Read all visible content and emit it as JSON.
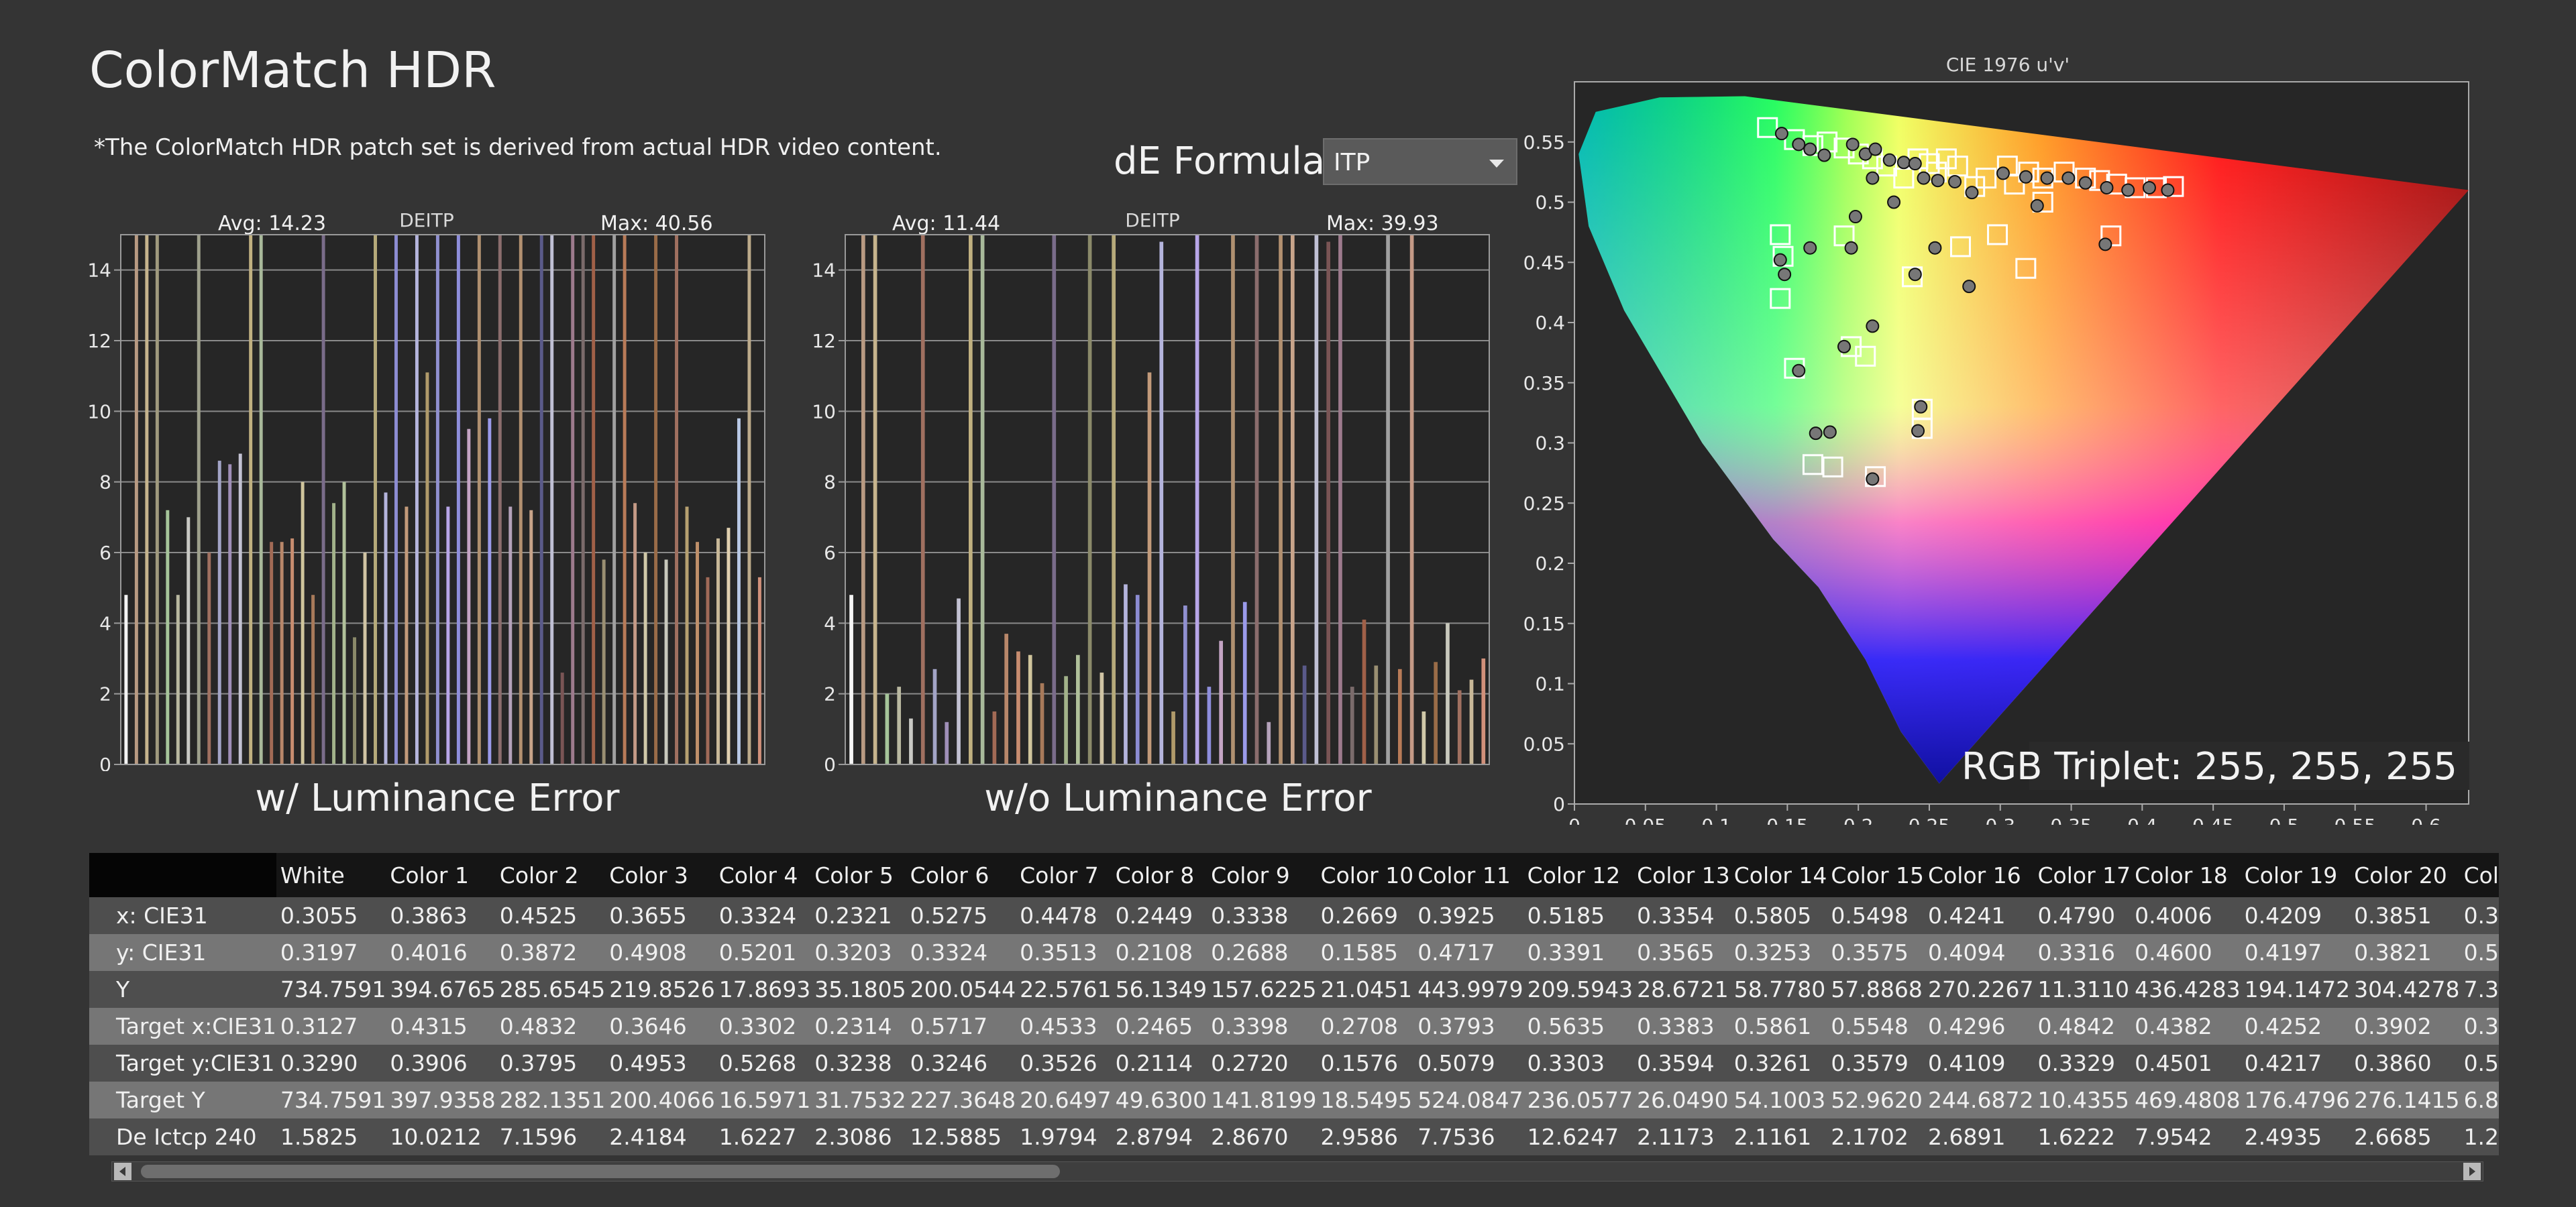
{
  "header": {
    "title": "ColorMatch HDR",
    "subtitle": "*The ColorMatch HDR patch set is derived from actual HDR video content.",
    "de_formula_label": "dE Formula:",
    "de_formula_value": "ITP"
  },
  "colors": {
    "background": "#343434",
    "plot_background": "#262626",
    "grid": "#8a8a8a",
    "row_dark": "#4e4e4e",
    "row_light": "#767676"
  },
  "chart_data": [
    {
      "type": "bar",
      "title": "DEITP",
      "caption": "w/ Luminance Error",
      "avg_label": "Avg: 14.23",
      "max_label": "Max: 40.56",
      "ylim": [
        0,
        15
      ],
      "y_ticks": [
        0,
        2,
        4,
        6,
        8,
        10,
        12,
        14
      ],
      "grid": true,
      "values": [
        4.8,
        15,
        15,
        15,
        7.2,
        4.8,
        7.0,
        15,
        6.0,
        8.6,
        8.5,
        8.8,
        15,
        15,
        6.3,
        6.3,
        6.4,
        8.0,
        4.8,
        15,
        7.4,
        8.0,
        3.6,
        6.0,
        15,
        7.7,
        15,
        7.3,
        15,
        11.1,
        15,
        7.3,
        15,
        9.5,
        15,
        9.8,
        15,
        7.3,
        15,
        7.2,
        15,
        15,
        2.6,
        15,
        15,
        15,
        5.8,
        15,
        15,
        7.4,
        6.0,
        15,
        5.8,
        15,
        7.3,
        6.3,
        5.3,
        6.4,
        6.7,
        9.8,
        15,
        5.3
      ],
      "bar_colors": [
        "#f4f4f4",
        "#b89a82",
        "#c6b48d",
        "#a09a7e",
        "#a6c59a",
        "#b9b8a0",
        "#c9c9c4",
        "#9ea08c",
        "#a07060",
        "#a2a4c6",
        "#9f8fb8",
        "#c3c2d2",
        "#c0b080",
        "#a8b99a",
        "#a26a55",
        "#b8876a",
        "#c88d70",
        "#d0c59c",
        "#a87a5a",
        "#7a6c8a",
        "#a2b28a",
        "#b0c09a",
        "#8b8a6a",
        "#d0c4a4",
        "#b6aa7a",
        "#b4b4dc",
        "#8c8cd2",
        "#c29a7a",
        "#b4b4dc",
        "#b09a6a",
        "#9090d0",
        "#b8a6e8",
        "#8e8edc",
        "#c4a4c4",
        "#b09070",
        "#9a9aea",
        "#8b6d6d",
        "#b4a2ba",
        "#b29070",
        "#c8a48a",
        "#5a5a8a",
        "#c0c0d4",
        "#7a5555",
        "#9d7a8d",
        "#7b6b6b",
        "#a06048",
        "#9a8f72",
        "#a0a0a0",
        "#b87b58",
        "#c49a86",
        "#d0c8a8",
        "#9a6c48",
        "#c8c8bc",
        "#a07060",
        "#b6a070",
        "#c0906a",
        "#a06a58",
        "#c8b898",
        "#e0d0b0",
        "#b8c8e4",
        "#bcaa8a",
        "#d0907a"
      ]
    },
    {
      "type": "bar",
      "title": "DEITP",
      "caption": "w/o Luminance Error",
      "avg_label": "Avg: 11.44",
      "max_label": "Max: 39.93",
      "ylim": [
        0,
        15
      ],
      "y_ticks": [
        0,
        2,
        4,
        6,
        8,
        10,
        12,
        14
      ],
      "grid": true,
      "values": [
        4.8,
        15,
        15,
        2.0,
        2.2,
        1.3,
        15,
        2.7,
        1.2,
        4.7,
        15,
        15,
        1.5,
        3.7,
        3.2,
        3.1,
        2.3,
        15,
        2.5,
        3.1,
        15,
        2.6,
        15,
        5.1,
        4.8,
        11.1,
        14.8,
        1.5,
        4.5,
        15,
        2.2,
        3.5,
        15,
        4.6,
        15,
        1.2,
        15,
        15,
        2.8,
        15,
        14.8,
        15,
        2.2,
        4.1,
        2.8,
        15,
        2.7,
        15,
        1.5,
        2.9,
        4.0,
        2.1,
        2.4,
        3.0
      ],
      "bar_colors": [
        "#f4f4f4",
        "#b89a82",
        "#c6b48d",
        "#a6c59a",
        "#b9b8a0",
        "#c9c9c4",
        "#a07060",
        "#a2a4c6",
        "#9f8fb8",
        "#c3c2d2",
        "#c0b080",
        "#a8b99a",
        "#a26a55",
        "#b8876a",
        "#c88d70",
        "#d0c59c",
        "#a87a5a",
        "#7a6c8a",
        "#a2b28a",
        "#b0c09a",
        "#8b8a6a",
        "#d0c4a4",
        "#b6aa7a",
        "#b4b4dc",
        "#8c8cd2",
        "#c29a7a",
        "#b4b4dc",
        "#b09a6a",
        "#9090d0",
        "#b8a6e8",
        "#8e8edc",
        "#c4a4c4",
        "#b09070",
        "#9a9aea",
        "#8b6d6d",
        "#b4a2ba",
        "#b29070",
        "#c8a48a",
        "#5a5a8a",
        "#c0c0d4",
        "#7a5555",
        "#9d7a8d",
        "#7b6b6b",
        "#a06048",
        "#9a8f72",
        "#a0a0a0",
        "#b87b58",
        "#c49a86",
        "#d0c8a8",
        "#9a6c48",
        "#c8c8bc",
        "#a07060",
        "#c8b898",
        "#d0907a"
      ]
    },
    {
      "type": "scatter",
      "title": "CIE 1976 u'v'",
      "rgb_triplet_label": "RGB Triplet: 255, 255, 255",
      "xlim": [
        0,
        0.63
      ],
      "ylim": [
        0,
        0.6
      ],
      "x_ticks": [
        "0",
        "0.05",
        "0.1",
        "0.15",
        "0.2",
        "0.25",
        "0.3",
        "0.35",
        "0.4",
        "0.45",
        "0.5",
        "0.55",
        "0.6"
      ],
      "y_ticks": [
        "0",
        "0.05",
        "0.1",
        "0.15",
        "0.2",
        "0.25",
        "0.3",
        "0.35",
        "0.4",
        "0.45",
        "0.5",
        "0.55"
      ],
      "target_points": [
        [
          0.136,
          0.562
        ],
        [
          0.155,
          0.552
        ],
        [
          0.168,
          0.547
        ],
        [
          0.178,
          0.55
        ],
        [
          0.19,
          0.545
        ],
        [
          0.2,
          0.54
        ],
        [
          0.21,
          0.536
        ],
        [
          0.22,
          0.53
        ],
        [
          0.232,
          0.52
        ],
        [
          0.242,
          0.536
        ],
        [
          0.25,
          0.532
        ],
        [
          0.255,
          0.525
        ],
        [
          0.262,
          0.536
        ],
        [
          0.27,
          0.53
        ],
        [
          0.282,
          0.513
        ],
        [
          0.29,
          0.52
        ],
        [
          0.305,
          0.53
        ],
        [
          0.31,
          0.515
        ],
        [
          0.32,
          0.525
        ],
        [
          0.33,
          0.52
        ],
        [
          0.345,
          0.525
        ],
        [
          0.36,
          0.52
        ],
        [
          0.37,
          0.518
        ],
        [
          0.382,
          0.515
        ],
        [
          0.395,
          0.512
        ],
        [
          0.41,
          0.512
        ],
        [
          0.422,
          0.513
        ],
        [
          0.33,
          0.5
        ],
        [
          0.298,
          0.473
        ],
        [
          0.272,
          0.463
        ],
        [
          0.238,
          0.438
        ],
        [
          0.19,
          0.472
        ],
        [
          0.145,
          0.473
        ],
        [
          0.147,
          0.455
        ],
        [
          0.145,
          0.42
        ],
        [
          0.155,
          0.362
        ],
        [
          0.195,
          0.38
        ],
        [
          0.205,
          0.372
        ],
        [
          0.245,
          0.328
        ],
        [
          0.245,
          0.312
        ],
        [
          0.168,
          0.282
        ],
        [
          0.182,
          0.28
        ],
        [
          0.212,
          0.272
        ],
        [
          0.318,
          0.445
        ],
        [
          0.378,
          0.472
        ]
      ],
      "measured_points": [
        [
          0.146,
          0.557
        ],
        [
          0.158,
          0.548
        ],
        [
          0.166,
          0.544
        ],
        [
          0.176,
          0.539
        ],
        [
          0.196,
          0.548
        ],
        [
          0.205,
          0.54
        ],
        [
          0.212,
          0.544
        ],
        [
          0.222,
          0.535
        ],
        [
          0.232,
          0.533
        ],
        [
          0.24,
          0.532
        ],
        [
          0.246,
          0.52
        ],
        [
          0.256,
          0.518
        ],
        [
          0.268,
          0.517
        ],
        [
          0.28,
          0.508
        ],
        [
          0.302,
          0.524
        ],
        [
          0.318,
          0.521
        ],
        [
          0.333,
          0.52
        ],
        [
          0.348,
          0.52
        ],
        [
          0.36,
          0.516
        ],
        [
          0.375,
          0.512
        ],
        [
          0.39,
          0.51
        ],
        [
          0.405,
          0.512
        ],
        [
          0.418,
          0.51
        ],
        [
          0.326,
          0.497
        ],
        [
          0.198,
          0.488
        ],
        [
          0.195,
          0.462
        ],
        [
          0.166,
          0.462
        ],
        [
          0.145,
          0.452
        ],
        [
          0.148,
          0.44
        ],
        [
          0.254,
          0.462
        ],
        [
          0.278,
          0.43
        ],
        [
          0.24,
          0.44
        ],
        [
          0.21,
          0.397
        ],
        [
          0.19,
          0.38
        ],
        [
          0.158,
          0.36
        ],
        [
          0.244,
          0.33
        ],
        [
          0.242,
          0.31
        ],
        [
          0.17,
          0.308
        ],
        [
          0.18,
          0.309
        ],
        [
          0.21,
          0.27
        ],
        [
          0.374,
          0.465
        ],
        [
          0.21,
          0.52
        ],
        [
          0.225,
          0.5
        ]
      ]
    }
  ],
  "table": {
    "columns": [
      "White",
      "Color 1",
      "Color 2",
      "Color 3",
      "Color 4",
      "Color 5",
      "Color 6",
      "Color 7",
      "Color 8",
      "Color 9",
      "Color 10",
      "Color 11",
      "Color 12",
      "Color 13",
      "Color 14",
      "Color 15",
      "Color 16",
      "Color 17",
      "Color 18",
      "Color 19",
      "Color 20",
      "Col"
    ],
    "rows": [
      {
        "label": "x: CIE31",
        "values": [
          "0.3055",
          "0.3863",
          "0.4525",
          "0.3655",
          "0.3324",
          "0.2321",
          "0.5275",
          "0.4478",
          "0.2449",
          "0.3338",
          "0.2669",
          "0.3925",
          "0.5185",
          "0.3354",
          "0.5805",
          "0.5498",
          "0.4241",
          "0.4790",
          "0.4006",
          "0.4209",
          "0.3851",
          "0.3"
        ]
      },
      {
        "label": "y: CIE31",
        "values": [
          "0.3197",
          "0.4016",
          "0.3872",
          "0.4908",
          "0.5201",
          "0.3203",
          "0.3324",
          "0.3513",
          "0.2108",
          "0.2688",
          "0.1585",
          "0.4717",
          "0.3391",
          "0.3565",
          "0.3253",
          "0.3575",
          "0.4094",
          "0.3316",
          "0.4600",
          "0.4197",
          "0.3821",
          "0.5"
        ]
      },
      {
        "label": "Y",
        "values": [
          "734.7591",
          "394.6765",
          "285.6545",
          "219.8526",
          "17.8693",
          "35.1805",
          "200.0544",
          "22.5761",
          "56.1349",
          "157.6225",
          "21.0451",
          "443.9979",
          "209.5943",
          "28.6721",
          "58.7780",
          "57.8868",
          "270.2267",
          "11.3110",
          "436.4283",
          "194.1472",
          "304.4278",
          "7.3"
        ]
      },
      {
        "label": "Target x:CIE31",
        "values": [
          "0.3127",
          "0.4315",
          "0.4832",
          "0.3646",
          "0.3302",
          "0.2314",
          "0.5717",
          "0.4533",
          "0.2465",
          "0.3398",
          "0.2708",
          "0.3793",
          "0.5635",
          "0.3383",
          "0.5861",
          "0.5548",
          "0.4296",
          "0.4842",
          "0.4382",
          "0.4252",
          "0.3902",
          "0.3"
        ]
      },
      {
        "label": "Target y:CIE31",
        "values": [
          "0.3290",
          "0.3906",
          "0.3795",
          "0.4953",
          "0.5268",
          "0.3238",
          "0.3246",
          "0.3526",
          "0.2114",
          "0.2720",
          "0.1576",
          "0.5079",
          "0.3303",
          "0.3594",
          "0.3261",
          "0.3579",
          "0.4109",
          "0.3329",
          "0.4501",
          "0.4217",
          "0.3860",
          "0.5"
        ]
      },
      {
        "label": "Target Y",
        "values": [
          "734.7591",
          "397.9358",
          "282.1351",
          "200.4066",
          "16.5971",
          "31.7532",
          "227.3648",
          "20.6497",
          "49.6300",
          "141.8199",
          "18.5495",
          "524.0847",
          "236.0577",
          "26.0490",
          "54.1003",
          "52.9620",
          "244.6872",
          "10.4355",
          "469.4808",
          "176.4796",
          "276.1415",
          "6.8"
        ]
      },
      {
        "label": "De Ictcp 240",
        "values": [
          "1.5825",
          "10.0212",
          "7.1596",
          "2.4184",
          "1.6227",
          "2.3086",
          "12.5885",
          "1.9794",
          "2.8794",
          "2.8670",
          "2.9586",
          "7.7536",
          "12.6247",
          "2.1173",
          "2.1161",
          "2.1702",
          "2.6891",
          "1.6222",
          "7.9542",
          "2.4935",
          "2.6685",
          "1.2"
        ]
      }
    ]
  }
}
